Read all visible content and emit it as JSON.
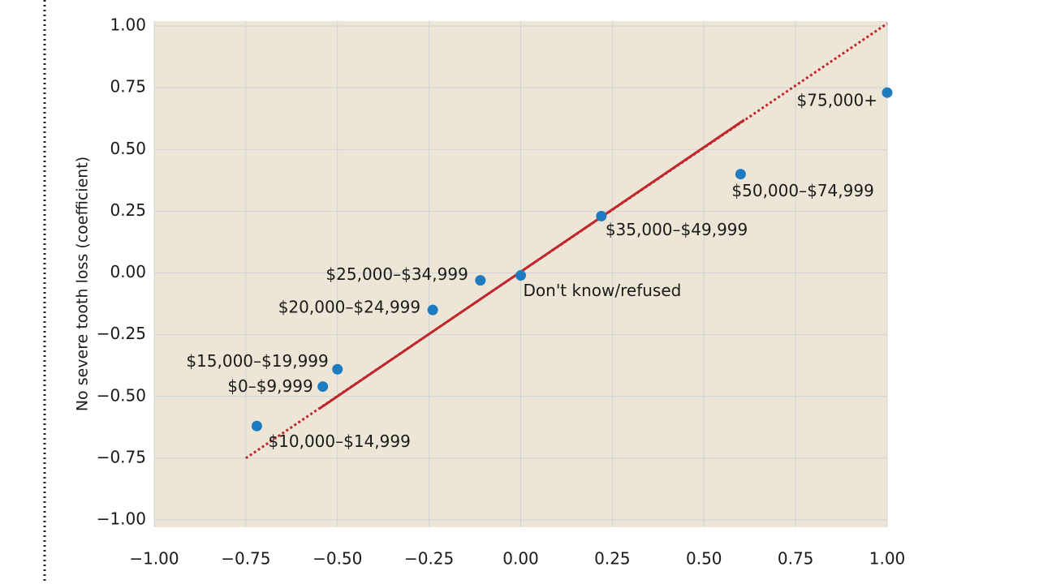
{
  "chart_data": {
    "type": "scatter",
    "ylabel": "No severe tooth loss (coefficient)",
    "xlim": [
      -1,
      1
    ],
    "ylim": [
      -1,
      1
    ],
    "xticks": [
      {
        "value": -1,
        "label": "−1.00"
      },
      {
        "value": -0.75,
        "label": "−0.75"
      },
      {
        "value": -0.5,
        "label": "−0.50"
      },
      {
        "value": -0.25,
        "label": "−0.25"
      },
      {
        "value": 0,
        "label": "0.00"
      },
      0.25,
      {
        "value": 0.5,
        "label": "0.50"
      },
      0.75,
      {
        "value": 1,
        "label": "1.00"
      }
    ],
    "yticks": [
      {
        "value": -1,
        "label": "−1.00"
      },
      {
        "value": -0.75,
        "label": "−0.75"
      },
      {
        "value": -0.5,
        "label": "−0.50"
      },
      {
        "value": -0.25,
        "label": "−0.25"
      },
      {
        "value": 0,
        "label": "0.00"
      },
      0.25,
      {
        "value": 0.5,
        "label": "0.50"
      },
      0.75,
      {
        "value": 1,
        "label": "1.00"
      }
    ],
    "grid": true,
    "series": [
      {
        "color": "#1f7bbf",
        "x": [
          1.0,
          0.6,
          0.22,
          0.0,
          -0.11,
          -0.24,
          -0.5,
          -0.54,
          -0.72
        ],
        "values": [
          0.73,
          0.4,
          0.23,
          -0.01,
          -0.03,
          -0.15,
          -0.39,
          -0.46,
          -0.62
        ],
        "labels": [
          "$75,000+",
          "$50,000–$74,999",
          "$35,000–$49,999",
          "Don't know/refused",
          "$25,000–$34,999",
          "$20,000–$24,999",
          "$15,000–$19,999",
          "$0–$9,999",
          "$10,000–$14,999"
        ]
      }
    ],
    "lines": [
      {
        "style": "dotted",
        "color": "#c0272d",
        "x": [
          -0.75,
          1.0
        ],
        "values": [
          -0.75,
          1.01
        ]
      },
      {
        "style": "solid",
        "color": "#c0272d",
        "x": [
          -0.55,
          0.61
        ],
        "values": [
          -0.55,
          0.62
        ]
      }
    ]
  }
}
